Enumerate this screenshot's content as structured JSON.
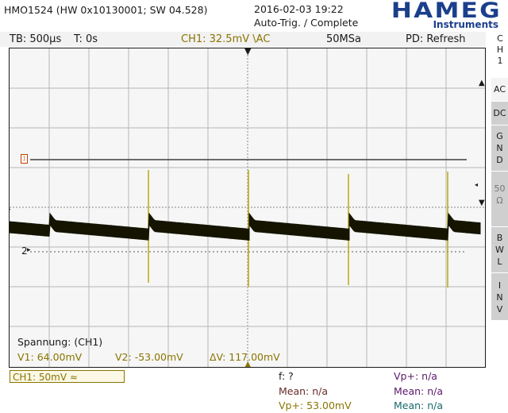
{
  "header": {
    "model_info": "HMO1524 (HW 0x10130001; SW 04.528)",
    "datetime": "2016-02-03 19:22",
    "trigger_state": "Auto-Trig. / Complete",
    "brand": "HAMEG",
    "brand_sub": "Instruments"
  },
  "status": {
    "timebase": "TB: 500µs",
    "time_offset": "T: 0s",
    "channel": "CH1: 32.5mV \\AC",
    "sample_rate": "50MSa",
    "acq_mode": "PD: Refresh"
  },
  "side_menu": {
    "channel": [
      "C",
      "H",
      "1"
    ],
    "buttons": [
      {
        "label": [
          "AC"
        ],
        "active": true
      },
      {
        "label": [
          "DC"
        ],
        "active": false
      },
      {
        "label": [
          "G",
          "N",
          "D"
        ],
        "active": false
      },
      {
        "label": [
          "50",
          "Ω"
        ],
        "active": false
      },
      {
        "label": [
          "B",
          "W",
          "L"
        ],
        "active": false
      },
      {
        "label": [
          "I",
          "N",
          "V"
        ],
        "active": false
      }
    ]
  },
  "screen": {
    "marker_ch1": "1",
    "marker_ch2": "2",
    "trigger_marker": "T",
    "cursor_title": "Spannung: (CH1)",
    "v1": "V1: 64.00mV",
    "v2": "V2: -53.00mV",
    "dv": "ΔV: 117.00mV",
    "colors": {
      "trace": "#141400",
      "spike": "#b8a400",
      "cursor": "#8a7400",
      "grid": "#b7b7b7"
    }
  },
  "footer": {
    "ch1_scale": "CH1: 50mV ≈",
    "freq": "f: ?",
    "mean1": "Mean: n/a",
    "vp1": "Vp+: 53.00mV",
    "vp2": "Vp+: n/a",
    "mean2": "Mean: n/a",
    "mean3": "Mean: n/a"
  }
}
